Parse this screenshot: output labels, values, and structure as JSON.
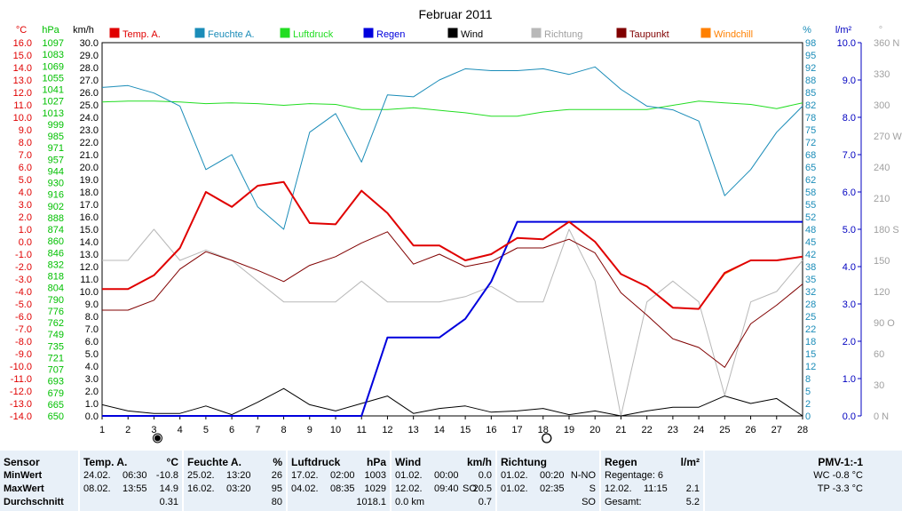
{
  "chart_data": {
    "type": "line",
    "title": "Februar 2011",
    "x": [
      1,
      2,
      3,
      4,
      5,
      6,
      7,
      8,
      9,
      10,
      11,
      12,
      13,
      14,
      15,
      16,
      17,
      18,
      19,
      20,
      21,
      22,
      23,
      24,
      25,
      26,
      27,
      28
    ],
    "xlim": [
      1,
      28
    ],
    "moon_markers": [
      {
        "day": 3,
        "symbol": "new-moon"
      },
      {
        "day": 18,
        "symbol": "full-moon"
      }
    ],
    "axes": [
      {
        "id": "temp",
        "unit": "°C",
        "side": "left",
        "min": -14,
        "max": 16,
        "step": 1,
        "ticks": [
          "16.0",
          "15.0",
          "14.0",
          "13.0",
          "12.0",
          "11.0",
          "10.0",
          "9.0",
          "8.0",
          "7.0",
          "6.0",
          "5.0",
          "4.0",
          "3.0",
          "2.0",
          "1.0",
          "0.0",
          "-1.0",
          "-2.0",
          "-3.0",
          "-4.0",
          "-5.0",
          "-6.0",
          "-7.0",
          "-8.0",
          "-9.0",
          "-10.0",
          "-11.0",
          "-12.0",
          "-13.0",
          "-14.0"
        ],
        "color": "#e00000"
      },
      {
        "id": "pressure",
        "unit": "hPa",
        "side": "left",
        "min": 650,
        "max": 1097,
        "ticks": [
          "1097",
          "1083",
          "1069",
          "1055",
          "1041",
          "1027",
          "1013",
          "999",
          "985",
          "971",
          "957",
          "944",
          "930",
          "916",
          "902",
          "888",
          "874",
          "860",
          "846",
          "832",
          "818",
          "804",
          "790",
          "776",
          "762",
          "749",
          "735",
          "721",
          "707",
          "693",
          "679",
          "665",
          "650"
        ],
        "color": "#00c000"
      },
      {
        "id": "wind",
        "unit": "km/h",
        "side": "left",
        "min": 0,
        "max": 30,
        "step": 1,
        "ticks": [
          "30.0",
          "29.0",
          "28.0",
          "27.0",
          "26.0",
          "25.0",
          "24.0",
          "23.0",
          "22.0",
          "21.0",
          "20.0",
          "19.0",
          "18.0",
          "17.0",
          "16.0",
          "15.0",
          "14.0",
          "13.0",
          "12.0",
          "11.0",
          "10.0",
          "9.0",
          "8.0",
          "7.0",
          "6.0",
          "5.0",
          "4.0",
          "3.0",
          "2.0",
          "1.0",
          "0.0"
        ],
        "color": "#000000"
      },
      {
        "id": "humidity",
        "unit": "%",
        "side": "right",
        "min": 0,
        "max": 100,
        "ticks": [
          "98",
          "95",
          "92",
          "88",
          "85",
          "82",
          "78",
          "75",
          "72",
          "68",
          "65",
          "62",
          "58",
          "55",
          "52",
          "48",
          "45",
          "42",
          "38",
          "35",
          "32",
          "28",
          "25",
          "22",
          "18",
          "15",
          "12",
          "8",
          "5",
          "2",
          "0"
        ],
        "color": "#1a8cb8"
      },
      {
        "id": "rain",
        "unit": "l/m²",
        "side": "right",
        "min": 0,
        "max": 10,
        "step": 1,
        "ticks": [
          "10.0",
          "9.0",
          "8.0",
          "7.0",
          "6.0",
          "5.0",
          "4.0",
          "3.0",
          "2.0",
          "1.0",
          "0.0"
        ],
        "color": "#0000c0"
      },
      {
        "id": "direction",
        "unit": "°",
        "side": "right",
        "min": 0,
        "max": 360,
        "ticks": [
          "360 N",
          "330",
          "300",
          "270 W",
          "240",
          "210",
          "180 S",
          "150",
          "120",
          "90 O",
          "60",
          "30",
          "0 N"
        ],
        "color": "#a0a0a0"
      }
    ],
    "series": [
      {
        "name": "Temp. A.",
        "axis": "temp",
        "color": "#e00000",
        "width": 2,
        "values": [
          -3.8,
          -3.8,
          -2.7,
          -0.5,
          4.0,
          2.8,
          4.5,
          4.8,
          1.5,
          1.4,
          4.1,
          2.3,
          -0.3,
          -0.3,
          -1.5,
          -1.0,
          0.3,
          0.2,
          1.6,
          0.0,
          -2.6,
          -3.6,
          -5.3,
          -5.4,
          -2.5,
          -1.5,
          -1.5,
          -1.2
        ],
        "legend": "Temp. A."
      },
      {
        "name": "Feuchte A.",
        "axis": "humidity",
        "color": "#1a8cb8",
        "width": 1,
        "values": [
          88,
          88.5,
          86.5,
          83,
          66,
          70,
          56,
          50,
          76,
          81,
          68,
          86,
          85.5,
          90,
          93,
          92.5,
          92.5,
          93,
          91.5,
          93.5,
          87.5,
          83,
          82,
          79,
          59,
          66,
          76,
          83
        ],
        "legend": "Feuchte A."
      },
      {
        "name": "Luftdruck",
        "axis": "pressure",
        "color": "#22dd22",
        "width": 1,
        "values": [
          1026,
          1027,
          1027,
          1026,
          1024,
          1025,
          1024,
          1022,
          1024,
          1023,
          1017,
          1017,
          1019,
          1016,
          1013,
          1009,
          1009,
          1014,
          1017,
          1017,
          1017,
          1017,
          1022,
          1027,
          1025,
          1023,
          1018,
          1025
        ],
        "legend": "Luftdruck"
      },
      {
        "name": "Regen",
        "axis": "rain",
        "color": "#0000dd",
        "width": 2,
        "values": [
          0,
          0,
          0,
          0,
          0,
          0,
          0,
          0,
          0,
          0,
          0,
          2.1,
          2.1,
          2.1,
          2.6,
          3.6,
          5.2,
          5.2,
          5.2,
          5.2,
          5.2,
          5.2,
          5.2,
          5.2,
          5.2,
          5.2,
          5.2,
          5.2
        ],
        "legend": "Regen"
      },
      {
        "name": "Wind",
        "axis": "wind",
        "color": "#000000",
        "width": 1,
        "values": [
          0.9,
          0.4,
          0.2,
          0.2,
          0.8,
          0.1,
          1.1,
          2.2,
          0.9,
          0.4,
          1.0,
          1.6,
          0.2,
          0.6,
          0.8,
          0.3,
          0.4,
          0.6,
          0.1,
          0.4,
          0.0,
          0.4,
          0.7,
          0.7,
          1.6,
          1.0,
          1.4,
          0.0
        ],
        "legend": "Wind"
      },
      {
        "name": "Richtung",
        "axis": "direction",
        "color": "#b8b8b8",
        "width": 1,
        "values": [
          150,
          150,
          180,
          150,
          160,
          150,
          130,
          110,
          110,
          110,
          130,
          110,
          110,
          110,
          115,
          125,
          110,
          110,
          180,
          130,
          0,
          110,
          130,
          110,
          20,
          110,
          120,
          150
        ],
        "legend": "Richtung"
      },
      {
        "name": "Taupunkt",
        "axis": "temp",
        "color": "#800000",
        "width": 1,
        "values": [
          -5.5,
          -5.5,
          -4.7,
          -2.2,
          -0.8,
          -1.5,
          -2.3,
          -3.2,
          -1.9,
          -1.2,
          -0.1,
          0.8,
          -1.8,
          -1.0,
          -2.0,
          -1.6,
          -0.5,
          -0.5,
          0.2,
          -0.9,
          -4.1,
          -5.9,
          -7.8,
          -8.5,
          -10.1,
          -6.6,
          -5.1,
          -3.4
        ],
        "legend": "Taupunkt"
      },
      {
        "name": "Windchill",
        "axis": "temp",
        "color": "#ff8000",
        "width": 1,
        "values": [
          -3.8,
          -3.8,
          -2.7,
          -0.5,
          4.0,
          2.8,
          4.5,
          4.8,
          1.5,
          1.4,
          4.1,
          2.3,
          -0.3,
          -0.3,
          -1.5,
          -1.0,
          0.3,
          0.2,
          1.6,
          0.0,
          -2.6,
          -3.6,
          -5.3,
          -5.4,
          -2.6,
          -1.5,
          -1.5,
          -1.2
        ],
        "legend": "Windchill"
      }
    ]
  },
  "header_units": {
    "temp": "°C",
    "pressure": "hPa",
    "wind": "km/h",
    "humidity": "%",
    "rain": "l/m²",
    "direction": "°"
  },
  "summary": {
    "sensor": {
      "title": "Sensor",
      "min_label": "MinWert",
      "max_label": "MaxWert",
      "avg_label": "Durchschnitt"
    },
    "temp": {
      "title": "Temp. A.",
      "unit": "°C",
      "min_date": "24.02.",
      "min_time": "06:30",
      "min_value": "-10.8",
      "max_date": "08.02.",
      "max_time": "13:55",
      "max_value": "14.9",
      "avg_value": "0.31"
    },
    "humidity": {
      "title": "Feuchte A.",
      "unit": "%",
      "min_date": "25.02.",
      "min_time": "13:20",
      "min_value": "26",
      "max_date": "16.02.",
      "max_time": "03:20",
      "max_value": "95",
      "avg_value": "80"
    },
    "pressure": {
      "title": "Luftdruck",
      "unit": "hPa",
      "min_date": "17.02.",
      "min_time": "02:00",
      "min_value": "1003",
      "max_date": "04.02.",
      "max_time": "08:35",
      "max_value": "1029",
      "avg_value": "1018.1"
    },
    "wind": {
      "title": "Wind",
      "unit": "km/h",
      "min_date": "01.02.",
      "min_time": "00:00",
      "min_value": "0.0",
      "max_date": "12.02.",
      "max_time": "09:40",
      "max_dir": "SO",
      "max_value": "20.5",
      "avg_dist": "0.0 km",
      "avg_value": "0.7"
    },
    "direction": {
      "title": "Richtung",
      "min_date": "01.02.",
      "min_time": "00:20",
      "min_value": "N-NO",
      "max_date": "01.02.",
      "max_time": "02:35",
      "max_value": "S",
      "avg_value": "SO"
    },
    "rain": {
      "title": "Regen",
      "unit": "l/m²",
      "days_label": "Regentage: 6",
      "max_date": "12.02.",
      "max_time": "11:15",
      "max_value": "2.1",
      "total_label": "Gesamt:",
      "total_value": "5.2"
    },
    "pmv": {
      "title": "PMV-1:-1",
      "wc": "WC -0.8 °C",
      "tp": "TP -3.3 °C"
    }
  }
}
